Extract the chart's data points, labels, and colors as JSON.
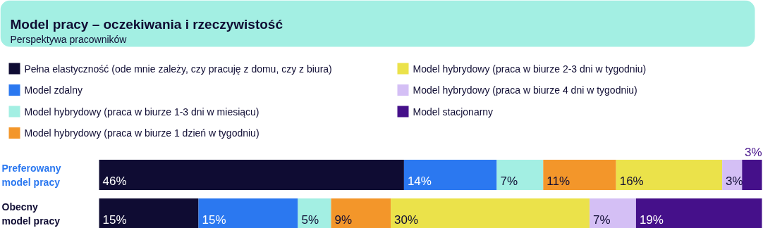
{
  "chart_data": {
    "type": "bar",
    "orientation": "horizontal",
    "stacked": true,
    "legend": "top",
    "title": "Model pracy – oczekiwania i rzeczywistość",
    "subtitle": "Perspektywa pracowników",
    "categories": [
      "Preferowany model pracy",
      "Obecny model pracy"
    ],
    "series": [
      {
        "name": "Pełna elastyczność (ode mnie zależy, czy pracuję z domu, czy z biura)",
        "color": "#0f0c33",
        "values": [
          46,
          15
        ],
        "value_labels": [
          "46%",
          "15%"
        ]
      },
      {
        "name": "Model zdalny",
        "color": "#2b78f0",
        "values": [
          14,
          15
        ],
        "value_labels": [
          "14%",
          "15%"
        ]
      },
      {
        "name": "Model hybrydowy (praca w biurze 1-3 dni w miesiącu)",
        "color": "#a3efe3",
        "values": [
          7,
          5
        ],
        "value_labels": [
          "7%",
          "5%"
        ]
      },
      {
        "name": "Model hybrydowy (praca w biurze 1 dzień w tygodniu)",
        "color": "#f3962a",
        "values": [
          11,
          9
        ],
        "value_labels": [
          "11%",
          "9%"
        ]
      },
      {
        "name": "Model hybrydowy (praca w biurze 2-3 dni w tygodniu)",
        "color": "#ebe24a",
        "values": [
          16,
          30
        ],
        "value_labels": [
          "16%",
          "30%"
        ]
      },
      {
        "name": "Model hybrydowy (praca w biurze 4 dni w tygodniu)",
        "color": "#d4bff5",
        "values": [
          3,
          7
        ],
        "value_labels": [
          "3%",
          "7%"
        ]
      },
      {
        "name": "Model stacjonarny",
        "color": "#45108a",
        "values": [
          3,
          19
        ],
        "value_labels": [
          "3%",
          "19%"
        ]
      }
    ]
  }
}
